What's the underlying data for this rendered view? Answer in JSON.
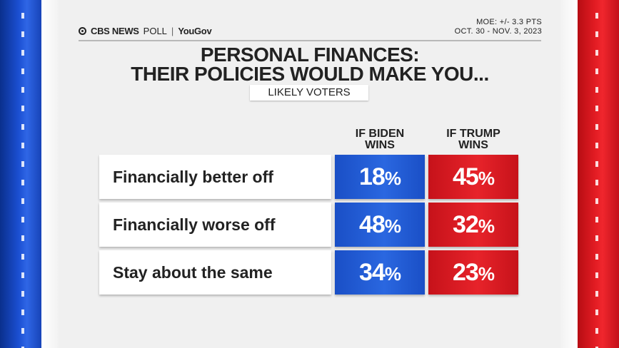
{
  "header": {
    "brand_cbs": "CBS NEWS",
    "brand_poll": "POLL",
    "brand_sep": "|",
    "brand_yougov": "YouGov",
    "moe": "MOE: +/- 3.3 PTS",
    "dates": "OCT. 30 - NOV. 3, 2023"
  },
  "colors": {
    "biden": "#1f57d3",
    "trump": "#e01b22",
    "background": "#efefef"
  },
  "chart_data": {
    "type": "table",
    "title": "PERSONAL FINANCES:",
    "title_line2": "THEIR POLICIES WOULD MAKE YOU...",
    "subtitle": "LIKELY VOTERS",
    "columns": [
      {
        "line1": "IF BIDEN",
        "line2": "WINS"
      },
      {
        "line1": "IF TRUMP",
        "line2": "WINS"
      }
    ],
    "categories": [
      "Financially better off",
      "Financially worse off",
      "Stay about the same"
    ],
    "series": [
      {
        "name": "IF BIDEN WINS",
        "values": [
          18,
          48,
          34
        ]
      },
      {
        "name": "IF TRUMP WINS",
        "values": [
          45,
          32,
          23
        ]
      }
    ],
    "unit": "%"
  }
}
